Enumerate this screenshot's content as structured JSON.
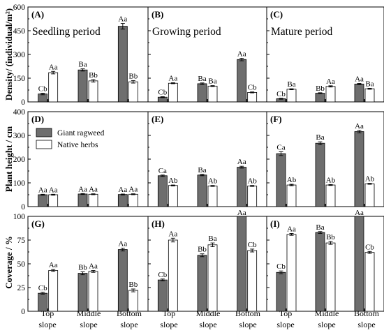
{
  "figure": {
    "row_labels": [
      "Density/ (individual/m²)",
      "Plant height / cm",
      "Coverage / %"
    ],
    "legend": {
      "series": [
        "Giant ragweed",
        "Native herbs"
      ],
      "colors": [
        "#6e6e6e",
        "#ffffff"
      ]
    },
    "x_categories": [
      [
        "Top",
        "slope"
      ],
      [
        "Middle",
        "slope"
      ],
      [
        "Bottom",
        "slope"
      ]
    ]
  },
  "chart_data": [
    {
      "id": "(A)",
      "period": "Seedling period",
      "type": "bar",
      "metric": "density",
      "ylim": [
        0,
        600
      ],
      "yticks": [
        0,
        150,
        300,
        450,
        600
      ],
      "series": [
        {
          "name": "Giant ragweed",
          "values": [
            50,
            202,
            478
          ],
          "errors": [
            5,
            7,
            18
          ],
          "letters": [
            "Cb",
            "Ba",
            "Aa"
          ]
        },
        {
          "name": "Native herbs",
          "values": [
            185,
            133,
            127
          ],
          "errors": [
            8,
            8,
            8
          ],
          "letters": [
            "Aa",
            "Bb",
            "Bb"
          ]
        }
      ]
    },
    {
      "id": "(B)",
      "period": "Growing period",
      "type": "bar",
      "metric": "density",
      "ylim": [
        0,
        600
      ],
      "yticks": [
        0,
        150,
        300,
        450,
        600
      ],
      "series": [
        {
          "name": "Giant ragweed",
          "values": [
            30,
            115,
            268
          ],
          "errors": [
            3,
            5,
            8
          ],
          "letters": [
            "Cb",
            "Ba",
            "Aa"
          ]
        },
        {
          "name": "Native herbs",
          "values": [
            118,
            100,
            60
          ],
          "errors": [
            3,
            3,
            3
          ],
          "letters": [
            "Aa",
            "Ba",
            "Cb"
          ]
        }
      ]
    },
    {
      "id": "(C)",
      "period": "Mature period",
      "type": "bar",
      "metric": "density",
      "ylim": [
        0,
        600
      ],
      "yticks": [
        0,
        150,
        300,
        450,
        600
      ],
      "series": [
        {
          "name": "Giant ragweed",
          "values": [
            20,
            55,
            113
          ],
          "errors": [
            3,
            3,
            4
          ],
          "letters": [
            "Cb",
            "Bb",
            "Aa"
          ]
        },
        {
          "name": "Native herbs",
          "values": [
            80,
            98,
            83
          ],
          "errors": [
            3,
            4,
            3
          ],
          "letters": [
            "Ba",
            "Aa",
            "Ba"
          ]
        }
      ]
    },
    {
      "id": "(D)",
      "type": "bar",
      "metric": "plant height",
      "ylim": [
        0,
        400
      ],
      "yticks": [
        0,
        100,
        200,
        300,
        400
      ],
      "series": [
        {
          "name": "Giant ragweed",
          "values": [
            50,
            53,
            51
          ],
          "errors": [
            2,
            2,
            2
          ],
          "letters": [
            "Aa",
            "Aa",
            "Aa"
          ]
        },
        {
          "name": "Native herbs",
          "values": [
            50,
            52,
            52
          ],
          "errors": [
            2,
            2,
            2
          ],
          "letters": [
            "Aa",
            "Aa",
            "Aa"
          ]
        }
      ]
    },
    {
      "id": "(E)",
      "type": "bar",
      "metric": "plant height",
      "ylim": [
        0,
        400
      ],
      "yticks": [
        0,
        100,
        200,
        300,
        400
      ],
      "series": [
        {
          "name": "Giant ragweed",
          "values": [
            130,
            133,
            166
          ],
          "errors": [
            3,
            3,
            4
          ],
          "letters": [
            "Ca",
            "Ba",
            "Aa"
          ]
        },
        {
          "name": "Native herbs",
          "values": [
            89,
            87,
            87
          ],
          "errors": [
            2,
            2,
            2
          ],
          "letters": [
            "Ab",
            "Ab",
            "Ab"
          ]
        }
      ]
    },
    {
      "id": "(F)",
      "type": "bar",
      "metric": "plant height",
      "ylim": [
        0,
        400
      ],
      "yticks": [
        0,
        100,
        200,
        300,
        400
      ],
      "series": [
        {
          "name": "Giant ragweed",
          "values": [
            223,
            267,
            316
          ],
          "errors": [
            8,
            6,
            5
          ],
          "letters": [
            "Ca",
            "Ba",
            "Aa"
          ]
        },
        {
          "name": "Native herbs",
          "values": [
            91,
            91,
            96
          ],
          "errors": [
            3,
            2,
            2
          ],
          "letters": [
            "Ab",
            "Ab",
            "Ab"
          ]
        }
      ]
    },
    {
      "id": "(G)",
      "type": "bar",
      "metric": "coverage",
      "ylim": [
        0,
        100
      ],
      "yticks": [
        0,
        25,
        50,
        75,
        100
      ],
      "series": [
        {
          "name": "Giant ragweed",
          "values": [
            19,
            40,
            65
          ],
          "errors": [
            1,
            1.5,
            1.5
          ],
          "letters": [
            "Cb",
            "Bb",
            "Aa"
          ]
        },
        {
          "name": "Native herbs",
          "values": [
            43,
            42,
            22
          ],
          "errors": [
            1,
            1,
            1.5
          ],
          "letters": [
            "Aa",
            "Aa",
            "Bb"
          ]
        }
      ]
    },
    {
      "id": "(H)",
      "type": "bar",
      "metric": "coverage",
      "ylim": [
        0,
        100
      ],
      "yticks": [
        0,
        25,
        50,
        75,
        100
      ],
      "series": [
        {
          "name": "Giant ragweed",
          "values": [
            33,
            59,
            100
          ],
          "errors": [
            1,
            1.5,
            0
          ],
          "letters": [
            "Cb",
            "Bb",
            "Aa"
          ]
        },
        {
          "name": "Native herbs",
          "values": [
            75,
            70,
            64
          ],
          "errors": [
            2,
            2,
            1.5
          ],
          "letters": [
            "Aa",
            "Ba",
            "Cb"
          ]
        }
      ]
    },
    {
      "id": "(I)",
      "type": "bar",
      "metric": "coverage",
      "ylim": [
        0,
        100
      ],
      "yticks": [
        0,
        25,
        50,
        75,
        100
      ],
      "series": [
        {
          "name": "Giant ragweed",
          "values": [
            41,
            83,
            100
          ],
          "errors": [
            1.5,
            1,
            0
          ],
          "letters": [
            "Cb",
            "Ba",
            "Aa"
          ]
        },
        {
          "name": "Native herbs",
          "values": [
            81,
            72,
            62
          ],
          "errors": [
            1,
            1.5,
            1
          ],
          "letters": [
            "Aa",
            "Bb",
            "Cb"
          ]
        }
      ]
    }
  ]
}
